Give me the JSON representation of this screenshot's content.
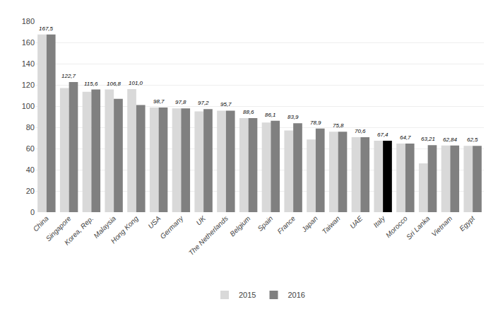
{
  "chart_data": {
    "type": "bar",
    "categories": [
      "China",
      "Singapore",
      "Korea, Rep.",
      "Malaysia",
      "Hong Kong",
      "USA",
      "Germany",
      "UK",
      "The Netherlands",
      "Belgium",
      "Spain",
      "France",
      "Japan",
      "Taiwan",
      "UAE",
      "Italy",
      "Morocco",
      "Sri Lanka",
      "Vietnam",
      "Egypt"
    ],
    "series": [
      {
        "name": "2015",
        "color": "#d9d9d9",
        "values": [
          167.5,
          117.0,
          113.5,
          115.6,
          116.0,
          98.7,
          97.8,
          95.0,
          95.7,
          88.6,
          84.5,
          77.0,
          68.5,
          75.8,
          70.6,
          67.4,
          64.7,
          46.0,
          62.84,
          62.5
        ]
      },
      {
        "name": "2016",
        "color": "#808080",
        "colors": [
          "#808080",
          "#808080",
          "#808080",
          "#808080",
          "#808080",
          "#808080",
          "#808080",
          "#808080",
          "#808080",
          "#808080",
          "#808080",
          "#808080",
          "#808080",
          "#808080",
          "#808080",
          "#000000",
          "#808080",
          "#808080",
          "#808080",
          "#808080"
        ],
        "values": [
          167.5,
          122.7,
          115.6,
          106.8,
          101.0,
          98.7,
          97.8,
          97.2,
          95.7,
          88.6,
          86.1,
          83.9,
          78.9,
          75.8,
          70.6,
          67.4,
          64.7,
          63.21,
          62.84,
          62.5
        ],
        "data_labels": true,
        "value_labels": [
          "167,5",
          "122,7",
          "115,6",
          "106,8",
          "101,0",
          "98,7",
          "97,8",
          "97,2",
          "95,7",
          "88,6",
          "86,1",
          "83,9",
          "78,9",
          "75,8",
          "70,6",
          "67,4",
          "64,7",
          "63,21",
          "62,84",
          "62,5"
        ]
      }
    ],
    "ylim": [
      0,
      180
    ],
    "yticks": [
      0,
      20,
      40,
      60,
      80,
      100,
      120,
      140,
      160,
      180
    ],
    "grid": true,
    "legend": "bottom"
  }
}
